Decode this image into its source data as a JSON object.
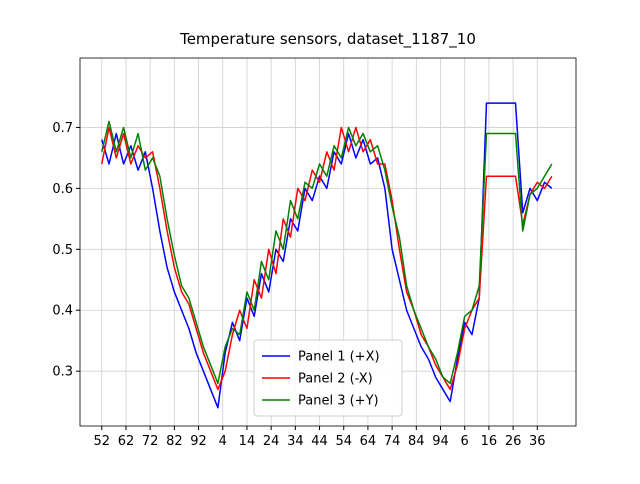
{
  "chart_data": {
    "type": "line",
    "title": "Temperature sensors, dataset_1187_10",
    "x": [
      52,
      55,
      58,
      61,
      64,
      67,
      70,
      73,
      76,
      79,
      82,
      85,
      88,
      91,
      94,
      97,
      100,
      103,
      106,
      109,
      112,
      115,
      118,
      121,
      124,
      127,
      130,
      133,
      136,
      139,
      142,
      145,
      148,
      151,
      154,
      157,
      160,
      163,
      166,
      169,
      172,
      175,
      178,
      181,
      184,
      187,
      190,
      193,
      196,
      199,
      202,
      205,
      208,
      211,
      214,
      217,
      220,
      223,
      226,
      229,
      232,
      235,
      238
    ],
    "series": [
      {
        "name": "Panel 1 (+X)",
        "color": "#0000ff",
        "values": [
          0.68,
          0.64,
          0.69,
          0.64,
          0.67,
          0.63,
          0.66,
          0.6,
          0.53,
          0.47,
          0.43,
          0.4,
          0.37,
          0.33,
          0.3,
          0.27,
          0.24,
          0.33,
          0.38,
          0.35,
          0.42,
          0.39,
          0.46,
          0.43,
          0.5,
          0.48,
          0.55,
          0.53,
          0.6,
          0.58,
          0.62,
          0.6,
          0.66,
          0.64,
          0.69,
          0.65,
          0.68,
          0.64,
          0.65,
          0.6,
          0.5,
          0.45,
          0.4,
          0.37,
          0.34,
          0.32,
          0.29,
          0.27,
          0.25,
          0.32,
          0.38,
          0.36,
          0.42,
          0.74,
          0.74,
          0.74,
          0.74,
          0.74,
          0.56,
          0.6,
          0.58,
          0.61,
          0.6
        ]
      },
      {
        "name": "Panel 2 (-X)",
        "color": "#ff0000",
        "values": [
          0.64,
          0.7,
          0.65,
          0.69,
          0.64,
          0.67,
          0.65,
          0.66,
          0.6,
          0.53,
          0.47,
          0.43,
          0.41,
          0.37,
          0.33,
          0.3,
          0.27,
          0.3,
          0.36,
          0.4,
          0.37,
          0.45,
          0.42,
          0.5,
          0.46,
          0.55,
          0.52,
          0.6,
          0.58,
          0.63,
          0.61,
          0.66,
          0.63,
          0.7,
          0.66,
          0.7,
          0.66,
          0.68,
          0.64,
          0.64,
          0.58,
          0.5,
          0.43,
          0.4,
          0.36,
          0.34,
          0.31,
          0.29,
          0.27,
          0.31,
          0.37,
          0.4,
          0.42,
          0.62,
          0.62,
          0.62,
          0.62,
          0.62,
          0.54,
          0.59,
          0.61,
          0.6,
          0.62
        ]
      },
      {
        "name": "Panel 3 (+Y)",
        "color": "#008000",
        "values": [
          0.66,
          0.71,
          0.66,
          0.7,
          0.65,
          0.69,
          0.63,
          0.65,
          0.62,
          0.55,
          0.49,
          0.44,
          0.42,
          0.38,
          0.34,
          0.31,
          0.28,
          0.34,
          0.37,
          0.36,
          0.43,
          0.4,
          0.48,
          0.45,
          0.53,
          0.5,
          0.58,
          0.55,
          0.61,
          0.6,
          0.64,
          0.62,
          0.67,
          0.65,
          0.7,
          0.67,
          0.69,
          0.66,
          0.67,
          0.63,
          0.57,
          0.52,
          0.44,
          0.4,
          0.37,
          0.34,
          0.32,
          0.29,
          0.28,
          0.33,
          0.39,
          0.4,
          0.44,
          0.69,
          0.69,
          0.69,
          0.69,
          0.69,
          0.53,
          0.59,
          0.6,
          0.62,
          0.64
        ]
      }
    ],
    "xlim": [
      43,
      248
    ],
    "xticks": [
      52,
      62,
      72,
      82,
      92,
      {
        "value": 102,
        "label": "4"
      },
      {
        "value": 112,
        "label": "14"
      },
      {
        "value": 122,
        "label": "24"
      },
      {
        "value": 132,
        "label": "34"
      },
      {
        "value": 142,
        "label": "44"
      },
      {
        "value": 152,
        "label": "54"
      },
      {
        "value": 162,
        "label": "64"
      },
      {
        "value": 172,
        "label": "74"
      },
      {
        "value": 182,
        "label": "84"
      },
      {
        "value": 192,
        "label": "94"
      },
      {
        "value": 202,
        "label": "6"
      },
      {
        "value": 212,
        "label": "16"
      },
      {
        "value": 222,
        "label": "26"
      },
      {
        "value": 232,
        "label": "36"
      }
    ],
    "ylim": [
      0.21,
      0.814
    ],
    "yticks": [
      0.3,
      0.4,
      0.5,
      0.6,
      0.7
    ],
    "grid": true,
    "legend": "lower center"
  }
}
